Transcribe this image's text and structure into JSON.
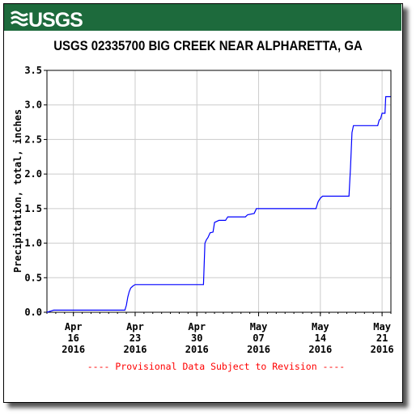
{
  "header": {
    "logo_text": "USGS",
    "banner_color": "#1d6a3c"
  },
  "chart_data": {
    "type": "line",
    "title": "USGS 02335700 BIG CREEK NEAR ALPHARETTA, GA",
    "ylabel": "Precipitation, total, inches",
    "xlabel": "",
    "ylim": [
      0,
      3.5
    ],
    "xlim": [
      "2016-04-13",
      "2016-05-22"
    ],
    "grid": true,
    "line_color": "#0000ff",
    "y_ticks": [
      "0.0",
      "0.5",
      "1.0",
      "1.5",
      "2.0",
      "2.5",
      "3.0",
      "3.5"
    ],
    "x_ticks": [
      {
        "date": "2016-04-16",
        "line1": "Apr",
        "line2": "16",
        "line3": "2016"
      },
      {
        "date": "2016-04-23",
        "line1": "Apr",
        "line2": "23",
        "line3": "2016"
      },
      {
        "date": "2016-04-30",
        "line1": "Apr",
        "line2": "30",
        "line3": "2016"
      },
      {
        "date": "2016-05-07",
        "line1": "May",
        "line2": "07",
        "line3": "2016"
      },
      {
        "date": "2016-05-14",
        "line1": "May",
        "line2": "14",
        "line3": "2016"
      },
      {
        "date": "2016-05-21",
        "line1": "May",
        "line2": "21",
        "line3": "2016"
      }
    ],
    "series": [
      {
        "points": [
          [
            "2016-04-13 00:00",
            0.0
          ],
          [
            "2016-04-13 12:00",
            0.02
          ],
          [
            "2016-04-13 18:00",
            0.03
          ],
          [
            "2016-04-21 20:00",
            0.03
          ],
          [
            "2016-04-22 00:00",
            0.1
          ],
          [
            "2016-04-22 04:00",
            0.22
          ],
          [
            "2016-04-22 08:00",
            0.3
          ],
          [
            "2016-04-22 12:00",
            0.35
          ],
          [
            "2016-04-22 18:00",
            0.38
          ],
          [
            "2016-04-23 00:00",
            0.4
          ],
          [
            "2016-04-30 18:00",
            0.4
          ],
          [
            "2016-04-30 20:00",
            0.7
          ],
          [
            "2016-04-30 22:00",
            1.0
          ],
          [
            "2016-05-01 02:00",
            1.05
          ],
          [
            "2016-05-01 06:00",
            1.08
          ],
          [
            "2016-05-01 12:00",
            1.15
          ],
          [
            "2016-05-01 20:00",
            1.16
          ],
          [
            "2016-05-02 00:00",
            1.3
          ],
          [
            "2016-05-02 12:00",
            1.33
          ],
          [
            "2016-05-03 06:00",
            1.33
          ],
          [
            "2016-05-03 12:00",
            1.38
          ],
          [
            "2016-05-05 12:00",
            1.38
          ],
          [
            "2016-05-05 18:00",
            1.41
          ],
          [
            "2016-05-06 12:00",
            1.43
          ],
          [
            "2016-05-06 18:00",
            1.5
          ],
          [
            "2016-05-13 12:00",
            1.5
          ],
          [
            "2016-05-13 18:00",
            1.6
          ],
          [
            "2016-05-14 00:00",
            1.65
          ],
          [
            "2016-05-14 06:00",
            1.68
          ],
          [
            "2016-05-17 06:00",
            1.68
          ],
          [
            "2016-05-17 10:00",
            2.1
          ],
          [
            "2016-05-17 14:00",
            2.6
          ],
          [
            "2016-05-17 18:00",
            2.7
          ],
          [
            "2016-05-20 12:00",
            2.7
          ],
          [
            "2016-05-20 16:00",
            2.78
          ],
          [
            "2016-05-20 20:00",
            2.8
          ],
          [
            "2016-05-21 00:00",
            2.88
          ],
          [
            "2016-05-21 08:00",
            2.88
          ],
          [
            "2016-05-21 10:00",
            3.12
          ],
          [
            "2016-05-21 23:00",
            3.12
          ]
        ]
      }
    ],
    "annotation": "---- Provisional Data Subject to Revision ----",
    "annotation_color": "#ff0000"
  }
}
